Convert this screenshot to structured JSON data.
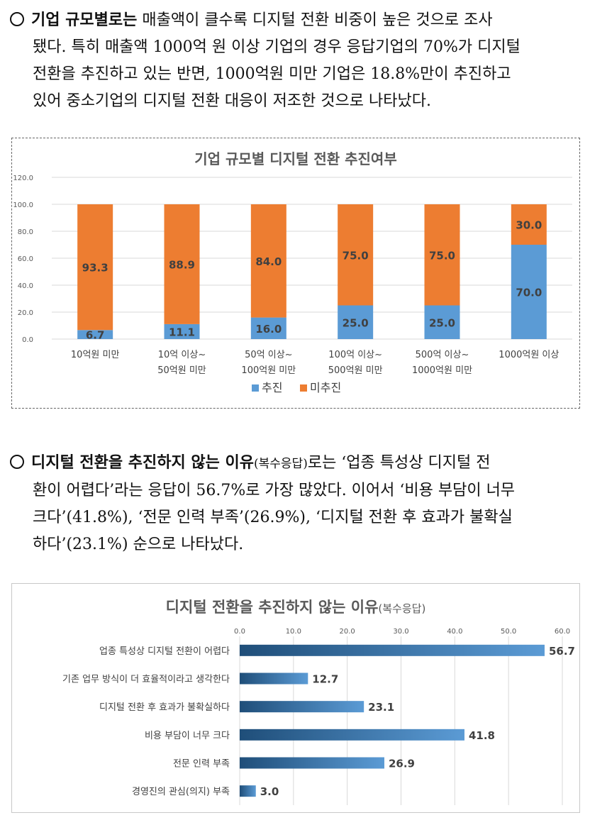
{
  "section1": {
    "lead": "기업 규모별로는",
    "lines": [
      " 매출액이 클수록 디지털 전환 비중이 높은 것으로 조사",
      "됐다. 특히 매출액 1000억 원 이상 기업의 경우 응답기업의 70%가 디지털",
      "전환을 추진하고 있는 반면, 1000억원 미만 기업은 18.8%만이 추진하고",
      "있어 중소기업의 디지털 전환 대응이 저조한 것으로 나타났다."
    ]
  },
  "section2": {
    "lead": "디지털 전환을 추진하지 않는 이유",
    "note": "(복수응답)",
    "lines": [
      "로는 ‘업종 특성상 디지털 전",
      "환이 어렵다’라는 응답이 56.7%로 가장 많았다. 이어서 ‘비용 부담이 너무",
      "크다’(41.8%), ‘전문 인력 부족’(26.9%), ‘디지털 전환 후 효과가 불확실",
      "하다’(23.1%) 순으로 나타났다."
    ]
  },
  "chart_data": [
    {
      "type": "bar",
      "stacked": true,
      "title": "기업 규모별 디지털 전환 추진여부",
      "categories": [
        [
          "10억원 미만"
        ],
        [
          "10억 이상~",
          "50억원 미만"
        ],
        [
          "50억 이상~",
          "100억원 미만"
        ],
        [
          "100억 이상~",
          "500억원 미만"
        ],
        [
          "500억 이상~",
          "1000억원 미만"
        ],
        [
          "1000억원 이상"
        ]
      ],
      "series": [
        {
          "name": "추진",
          "values": [
            6.7,
            11.1,
            16.0,
            25.0,
            25.0,
            70.0
          ],
          "color": "#5b9bd5"
        },
        {
          "name": "미추진",
          "values": [
            93.3,
            88.9,
            84.0,
            75.0,
            75.0,
            30.0
          ],
          "color": "#ed7d31"
        }
      ],
      "ylim": [
        0,
        120
      ],
      "yticks": [
        "0.0",
        "20.0",
        "40.0",
        "60.0",
        "80.0",
        "100.0",
        "120.0"
      ],
      "legend": "bottom",
      "grid": true
    },
    {
      "type": "bar",
      "orientation": "horizontal",
      "title": "디지털 전환을 추진하지 않는 이유",
      "title_note": "(복수응답)",
      "categories": [
        "업종 특성상 디지털 전환이 어렵다",
        "기존 업무 방식이 더 효율적이라고 생각한다",
        "디지털 전환 후 효과가 불확실하다",
        "비용 부담이 너무 크다",
        "전문 인력 부족",
        "경영진의 관심(의지) 부족"
      ],
      "values": [
        56.7,
        12.7,
        23.1,
        41.8,
        26.9,
        3.0
      ],
      "xlim": [
        0,
        60
      ],
      "xticks": [
        "0.0",
        "10.0",
        "20.0",
        "30.0",
        "40.0",
        "50.0",
        "60.0"
      ],
      "axis_position": "top",
      "color_start": "#1f4e79",
      "color_end": "#5b9bd5",
      "grid": true
    }
  ]
}
